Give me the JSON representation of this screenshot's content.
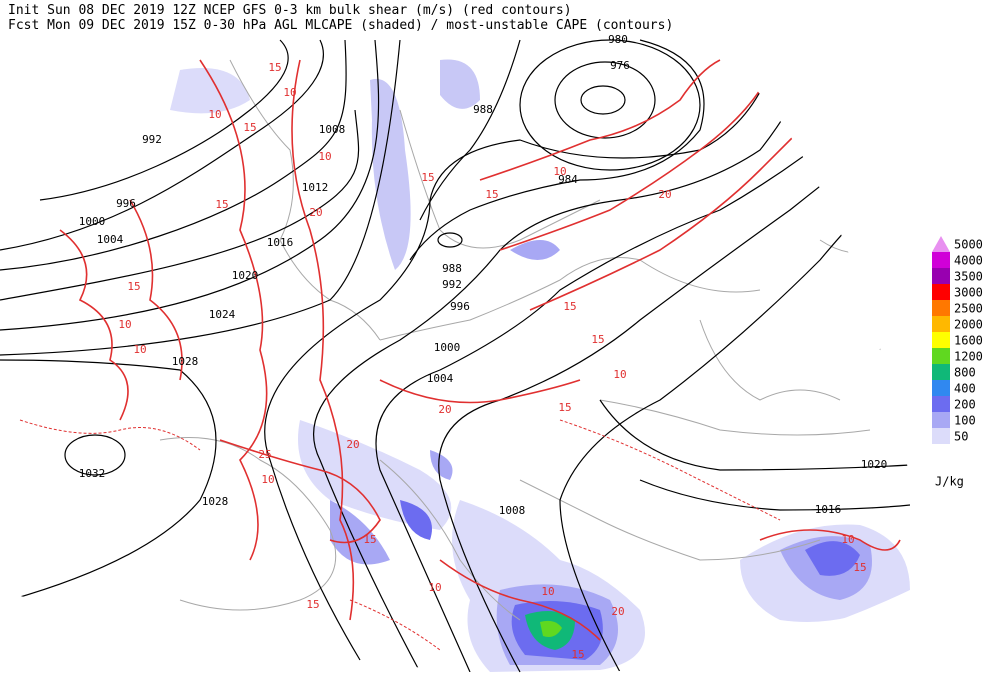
{
  "header": {
    "line1": "Init  Sun 08 DEC 2019 12Z  NCEP GFS 0-3 km bulk shear (m/s) (red contours)",
    "line2": "Fcst Mon 09 DEC 2019 15Z  0-30 hPa AGL MLCAPE (shaded) / most-unstable CAPE (contours)"
  },
  "pressure_labels": [
    "980",
    "976",
    "988",
    "984",
    "992",
    "996",
    "1000",
    "1004",
    "1008",
    "1012",
    "1016",
    "1020",
    "1024",
    "1028",
    "1032",
    "988",
    "992",
    "996",
    "1000",
    "1004",
    "1008",
    "1020",
    "1016",
    "1028"
  ],
  "shear_labels": [
    "15",
    "10",
    "10",
    "15",
    "10",
    "15",
    "20",
    "15",
    "10",
    "10",
    "15",
    "20",
    "25",
    "10",
    "15",
    "20",
    "15",
    "10",
    "15",
    "10",
    "15",
    "20",
    "15",
    "10",
    "15",
    "15",
    "10",
    "20",
    "15",
    "10"
  ],
  "legend": {
    "levels": [
      {
        "label": "5000",
        "color": "#e890f0"
      },
      {
        "label": "4000",
        "color": "#d000d8"
      },
      {
        "label": "3500",
        "color": "#9800b0"
      },
      {
        "label": "3000",
        "color": "#ff0000"
      },
      {
        "label": "2500",
        "color": "#ff7800"
      },
      {
        "label": "2000",
        "color": "#ffb800"
      },
      {
        "label": "1600",
        "color": "#ffff00"
      },
      {
        "label": "1200",
        "color": "#60d820"
      },
      {
        "label": "800",
        "color": "#10b878"
      },
      {
        "label": "400",
        "color": "#3088f0"
      },
      {
        "label": "200",
        "color": "#6c6cf0"
      },
      {
        "label": "100",
        "color": "#a8a8f4"
      },
      {
        "label": "50",
        "color": "#dcdcfa"
      }
    ],
    "unit": "J/kg"
  }
}
